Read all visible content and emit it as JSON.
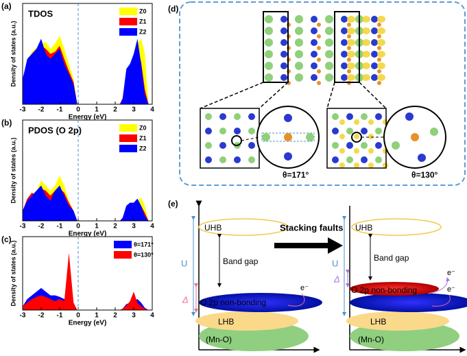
{
  "panel_labels": [
    "(a)",
    "(b)",
    "(c)",
    "(d)",
    "(e)"
  ],
  "chart_data": [
    {
      "type": "area",
      "title": "TDOS",
      "xlabel": "Energy (eV)",
      "ylabel": "Density of states (a.u.)",
      "x": [
        -3,
        -2.75,
        -2.5,
        -2.25,
        -2,
        -1.75,
        -1.5,
        -1.25,
        -1,
        -0.75,
        -0.5,
        -0.25,
        -0.05,
        2.25,
        2.4,
        2.6,
        2.8,
        3,
        3.2,
        3.4,
        3.6,
        3.8
      ],
      "xlim": [
        -3,
        4
      ],
      "xticks": [
        -3,
        -2,
        -1,
        0,
        1,
        2,
        3,
        4
      ],
      "ylim": [
        0,
        10
      ],
      "fermi": 0,
      "series": [
        {
          "name": "Z0",
          "color": "#ffff00",
          "values": [
            2,
            4.3,
            5.2,
            5.6,
            6,
            6.2,
            5.5,
            6,
            6.8,
            5.5,
            4,
            2.5,
            0,
            0,
            0.4,
            2,
            3,
            4.5,
            6,
            6.5,
            5,
            0
          ]
        },
        {
          "name": "Z1",
          "color": "#ff0000",
          "values": [
            2.2,
            4,
            4.8,
            5.3,
            5.8,
            5.5,
            5,
            5.2,
            5.8,
            4.5,
            3.3,
            2.2,
            0,
            0,
            0.6,
            3.3,
            3.8,
            4.8,
            5.5,
            4.2,
            1.5,
            0
          ]
        },
        {
          "name": "Z2",
          "color": "#0000ff",
          "values": [
            2.5,
            4.5,
            5,
            5.5,
            6.5,
            5,
            4.5,
            5,
            5.5,
            4,
            3,
            2,
            0,
            0,
            0.5,
            3.5,
            4,
            5,
            6.5,
            4,
            1,
            0
          ]
        }
      ]
    },
    {
      "type": "area",
      "title": "PDOS (O 2p)",
      "xlabel": "Energy (eV)",
      "ylabel": "Density of states (a.u.)",
      "x": [
        -3,
        -2.75,
        -2.5,
        -2.25,
        -2,
        -1.75,
        -1.5,
        -1.25,
        -1,
        -0.75,
        -0.5,
        -0.25,
        -0.05,
        2.25,
        2.4,
        2.6,
        2.8,
        3,
        3.2,
        3.4,
        3.6,
        3.8
      ],
      "xlim": [
        -3,
        4
      ],
      "xticks": [
        -3,
        -2,
        -1,
        0,
        1,
        2,
        3,
        4
      ],
      "ylim": [
        0,
        10
      ],
      "fermi": 0,
      "series": [
        {
          "name": "Z0",
          "color": "#ffff00",
          "values": [
            0.8,
            2,
            2.6,
            3,
            4,
            3.5,
            3,
            3.5,
            4.5,
            3.5,
            2,
            1,
            0,
            0,
            0.2,
            0.8,
            1,
            1.5,
            2,
            2.3,
            1.5,
            0
          ]
        },
        {
          "name": "Z1",
          "color": "#ff0000",
          "values": [
            1,
            2.2,
            2.8,
            2.5,
            3.2,
            3,
            2.5,
            3,
            3.2,
            2.8,
            1.8,
            1,
            0,
            0,
            0.3,
            1.3,
            1.5,
            1.6,
            2,
            1.5,
            0.8,
            0
          ]
        },
        {
          "name": "Z2",
          "color": "#0000ff",
          "values": [
            1,
            2,
            2.5,
            3,
            3.5,
            2.5,
            2,
            3,
            3.5,
            2.5,
            1.5,
            1,
            0,
            0,
            0.3,
            1.5,
            1.8,
            1.8,
            2.2,
            1.5,
            0.5,
            0
          ]
        }
      ]
    },
    {
      "type": "area",
      "xlabel": "Energy (eV)",
      "ylabel": "Density of states (a.u.)",
      "x": [
        -3,
        -2.75,
        -2.5,
        -2.25,
        -2,
        -1.75,
        -1.5,
        -1.25,
        -1,
        -0.75,
        -0.5,
        -0.25,
        -0.05,
        2.25,
        2.4,
        2.6,
        2.8,
        3,
        3.2,
        3.4,
        3.6,
        3.8
      ],
      "xlim": [
        -3,
        4
      ],
      "xticks": [
        -3,
        -2,
        -1,
        0,
        1,
        2,
        3,
        4
      ],
      "ylim": [
        0,
        10
      ],
      "fermi": 0,
      "series": [
        {
          "name": "θ=171°",
          "color": "#0000ff",
          "values": [
            0.5,
            1.5,
            2,
            2.5,
            3,
            2.5,
            2,
            2,
            1.8,
            1.5,
            1,
            0.5,
            0,
            0,
            0.2,
            0.8,
            1,
            1.2,
            1.5,
            1,
            0.3,
            0
          ]
        },
        {
          "name": "θ=130°",
          "color": "#ff0000",
          "values": [
            0.5,
            1,
            1.5,
            1.8,
            2,
            1.8,
            1.5,
            1.2,
            1.5,
            1.2,
            7.8,
            1,
            0,
            0,
            0.2,
            0.6,
            1.2,
            2.5,
            1,
            0.5,
            0.2,
            0
          ]
        }
      ]
    }
  ],
  "diagram_d": {
    "angle_left": "θ=171°",
    "angle_right": "θ=130°"
  },
  "diagram_e": {
    "arrow_label": "Stacking faults",
    "left": {
      "U": "U",
      "delta": "Δ",
      "uhb": "UHB",
      "band_gap": "Band gap",
      "o2p": "O 2p non-bonding",
      "lhb": "LHB",
      "mn_o": "(Mn-O)",
      "electron": "e⁻"
    },
    "right": {
      "U": "U",
      "delta": "Δ",
      "uhb": "UHB",
      "band_gap": "Band gap",
      "o2p": "O 2p non-bonding",
      "lhb": "LHB",
      "mn_o": "(Mn-O)",
      "electron": "e⁻",
      "electron2": "e⁻"
    }
  }
}
